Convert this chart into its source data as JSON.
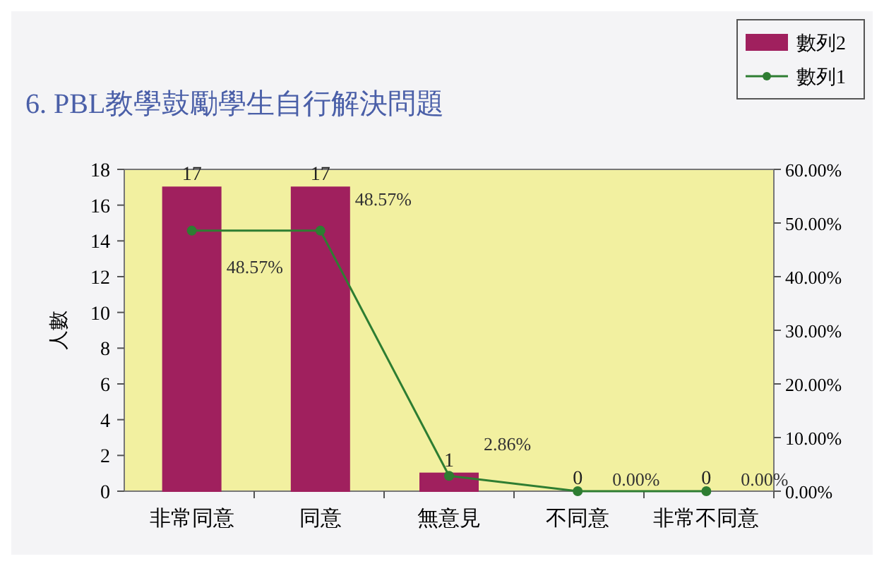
{
  "chart_data": {
    "type": "bar",
    "title": "6. PBL教學鼓勵學生自行解決問題",
    "ylabel": "人數",
    "categories": [
      "非常同意",
      "同意",
      "無意見",
      "不同意",
      "非常不同意"
    ],
    "series": [
      {
        "name": "數列2",
        "color": "#a0205e",
        "values": [
          17,
          17,
          1,
          0,
          0
        ],
        "value_labels": [
          "17",
          "17",
          "1",
          "0",
          "0"
        ]
      },
      {
        "name": "數列1",
        "type": "line",
        "axis": "y2",
        "color": "#2e7d32",
        "marker": "circle",
        "values": [
          48.57,
          48.57,
          2.86,
          0,
          0
        ],
        "value_labels": [
          "48.57%",
          "48.57%",
          "2.86%",
          "0.00%",
          "0.00%"
        ]
      }
    ],
    "ylim": [
      0,
      18
    ],
    "yticks": [
      0,
      2,
      4,
      6,
      8,
      10,
      12,
      14,
      16,
      18
    ],
    "y2lim": [
      0,
      60
    ],
    "y2ticks": [
      {
        "value": 0,
        "label": "0.00%"
      },
      {
        "value": 10,
        "label": "10.00%"
      },
      {
        "value": 20,
        "label": "20.00%"
      },
      {
        "value": 30,
        "label": "30.00%"
      },
      {
        "value": 40,
        "label": "40.00%"
      },
      {
        "value": 50,
        "label": "50.00%"
      },
      {
        "value": 60,
        "label": "60.00%"
      }
    ],
    "legend": "top right",
    "grid": false
  }
}
